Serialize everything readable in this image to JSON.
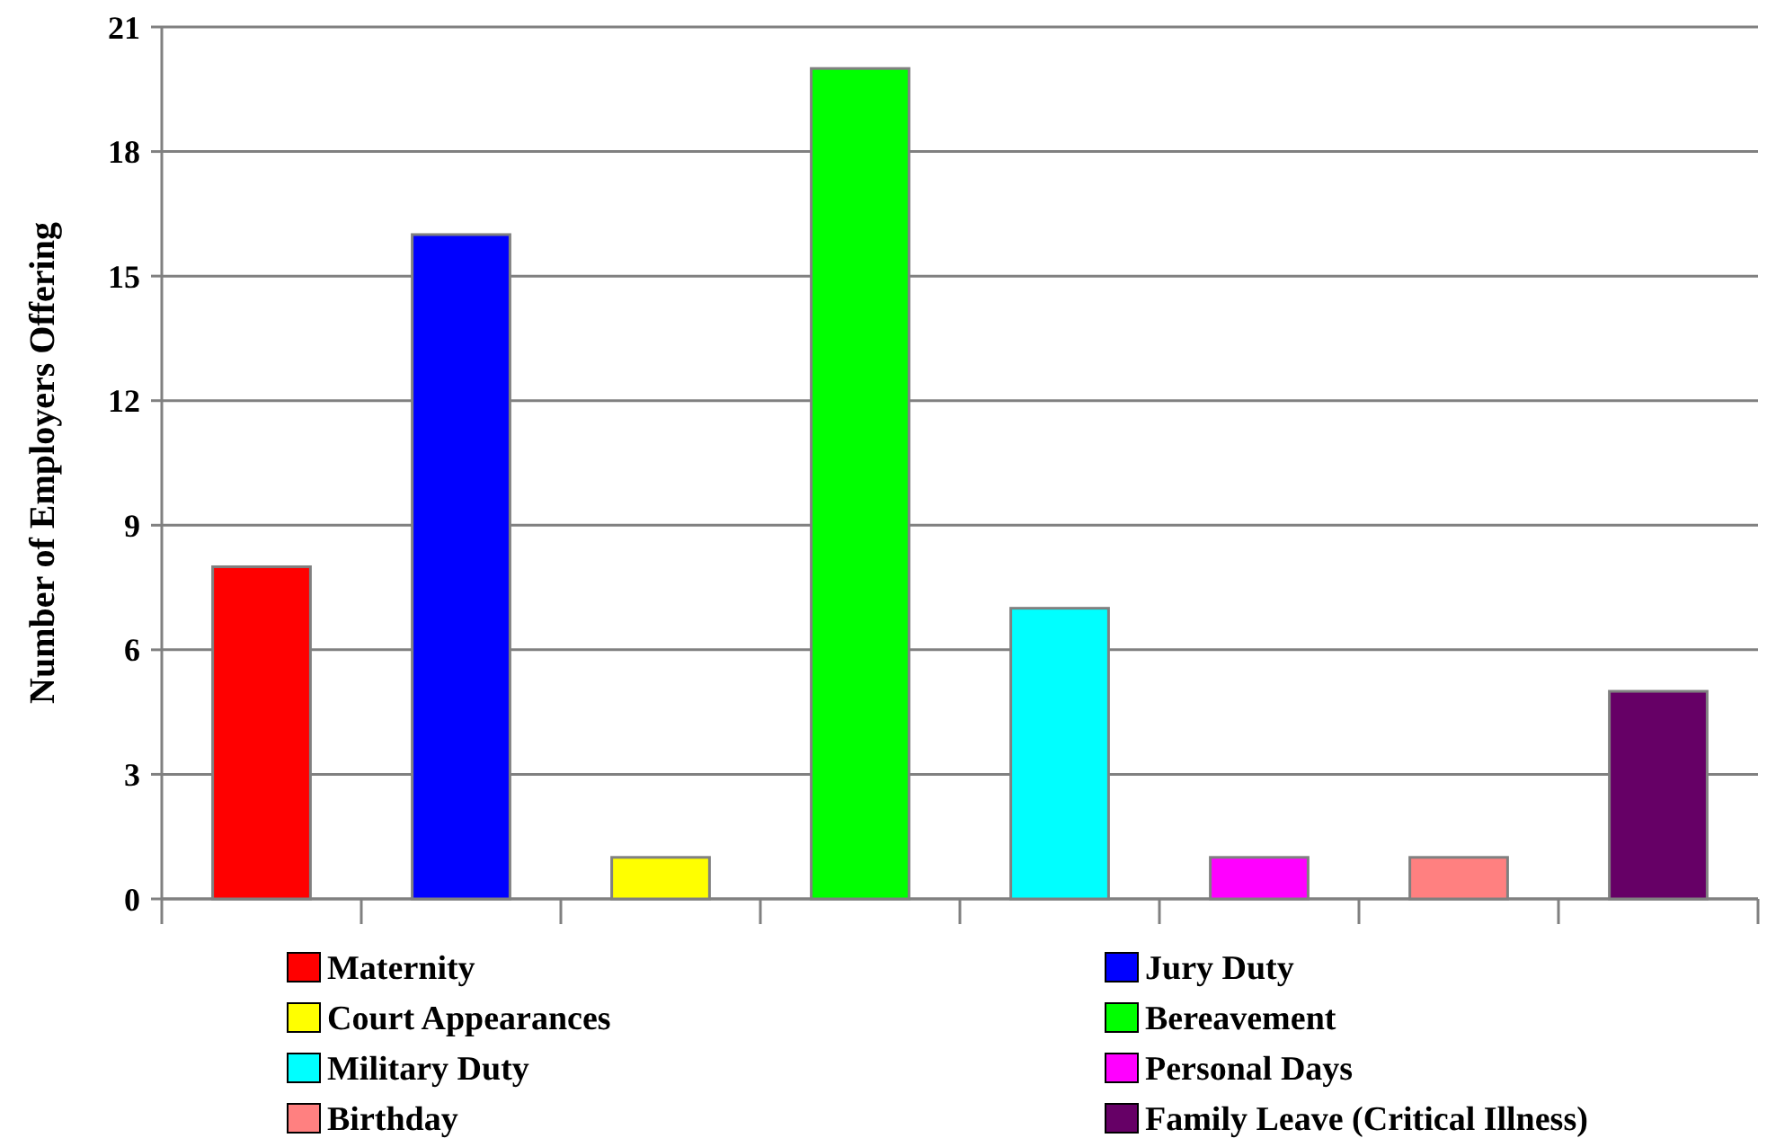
{
  "chart_data": {
    "type": "bar",
    "ylabel": "Number of Employers Offering",
    "categories": [
      null,
      null,
      null,
      null,
      null,
      null,
      null,
      null
    ],
    "series": [
      {
        "name": "Maternity",
        "color": "#ff0000",
        "values": [
          8,
          null,
          null,
          null,
          null,
          null,
          null,
          null
        ]
      },
      {
        "name": "Jury Duty",
        "color": "#0000ff",
        "values": [
          null,
          16,
          null,
          null,
          null,
          null,
          null,
          null
        ]
      },
      {
        "name": "Court Appearances",
        "color": "#ffff00",
        "values": [
          null,
          null,
          1,
          null,
          null,
          null,
          null,
          null
        ]
      },
      {
        "name": "Bereavement",
        "color": "#00ff00",
        "values": [
          null,
          null,
          null,
          20,
          null,
          null,
          null,
          null
        ]
      },
      {
        "name": "Military Duty",
        "color": "#00ffff",
        "values": [
          null,
          null,
          null,
          null,
          7,
          null,
          null,
          null
        ]
      },
      {
        "name": "Personal Days",
        "color": "#ff00ff",
        "values": [
          null,
          null,
          null,
          null,
          null,
          1,
          null,
          null
        ]
      },
      {
        "name": "Birthday",
        "color": "#ff8080",
        "values": [
          null,
          null,
          null,
          null,
          null,
          null,
          1,
          null
        ]
      },
      {
        "name": "Family Leave (Critical Illness)",
        "color": "#660066",
        "values": [
          null,
          null,
          null,
          null,
          null,
          null,
          null,
          5
        ]
      }
    ],
    "ylim": [
      0,
      21
    ],
    "yticks": [
      0,
      3,
      6,
      9,
      12,
      15,
      18,
      21
    ],
    "grid": "y",
    "legend": "bottom"
  }
}
